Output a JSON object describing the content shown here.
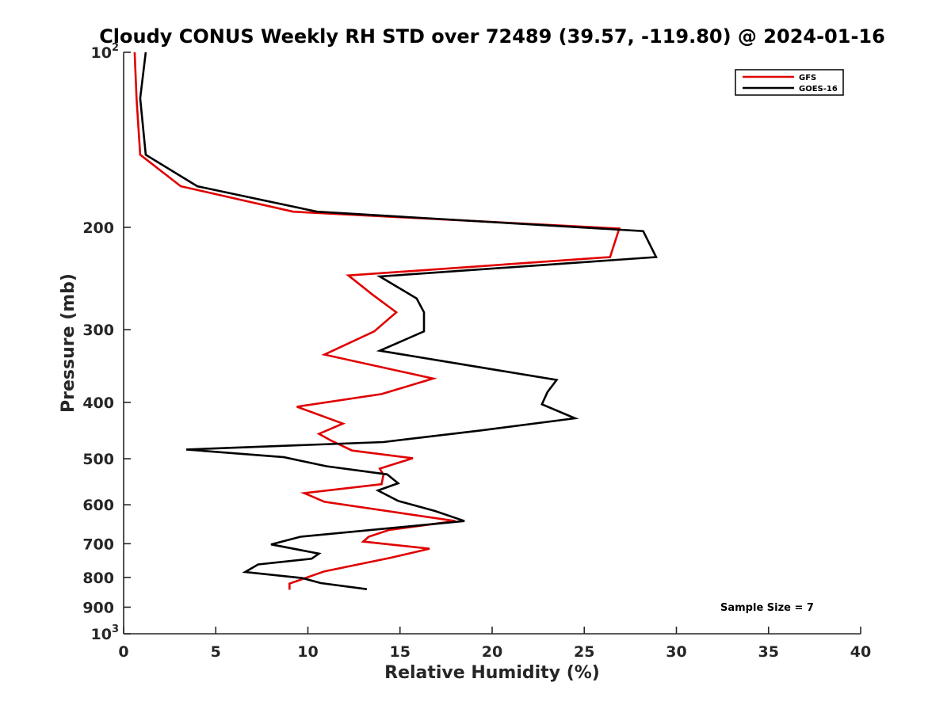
{
  "chart_data": {
    "type": "line",
    "title": "Cloudy CONUS Weekly RH STD over 72489 (39.57, -119.80) @ 2024-01-16",
    "xlabel": "Relative Humidity (%)",
    "ylabel": "Pressure (mb)",
    "xlim": [
      0,
      40
    ],
    "ylim": [
      100,
      1000
    ],
    "y_scale": "log",
    "y_reversed": true,
    "x_ticks": [
      0,
      5,
      10,
      15,
      20,
      25,
      30,
      35,
      40
    ],
    "y_ticks": [
      {
        "value": 100,
        "label": "10",
        "sup": "2"
      },
      {
        "value": 200,
        "label": "200",
        "sup": ""
      },
      {
        "value": 300,
        "label": "300",
        "sup": ""
      },
      {
        "value": 400,
        "label": "400",
        "sup": ""
      },
      {
        "value": 500,
        "label": "500",
        "sup": ""
      },
      {
        "value": 600,
        "label": "600",
        "sup": ""
      },
      {
        "value": 700,
        "label": "700",
        "sup": ""
      },
      {
        "value": 800,
        "label": "800",
        "sup": ""
      },
      {
        "value": 900,
        "label": "900",
        "sup": ""
      },
      {
        "value": 1000,
        "label": "10",
        "sup": "3"
      }
    ],
    "grid": false,
    "legend_position": "top-right",
    "series": [
      {
        "name": "GFS",
        "color": "#e00000",
        "x": [
          0.6,
          0.7,
          0.9,
          3.1,
          9.2,
          26.9,
          26.4,
          12.2,
          13.5,
          14.8,
          13.6,
          10.9,
          16.8,
          14.0,
          9.4,
          11.9,
          10.6,
          11.3,
          12.4,
          15.7,
          13.9,
          14.1,
          14.0,
          9.8,
          10.9,
          18.0,
          14.4,
          13.3,
          13.0,
          16.6,
          14.5,
          10.9,
          9.0,
          9.0
        ],
        "y": [
          100,
          120,
          150,
          170,
          188,
          201,
          225,
          242,
          261,
          280,
          302,
          331,
          364,
          387,
          407,
          435,
          453,
          466,
          484,
          499,
          520,
          533,
          553,
          573,
          593,
          640,
          663,
          681,
          694,
          714,
          740,
          781,
          820,
          840
        ]
      },
      {
        "name": "GOES-16",
        "color": "#000000",
        "x": [
          1.2,
          0.9,
          1.2,
          4.0,
          10.5,
          28.2,
          28.9,
          13.9,
          15.9,
          16.3,
          16.3,
          13.9,
          23.5,
          23.0,
          22.7,
          24.5,
          19.4,
          14.1,
          3.4,
          8.7,
          11.0,
          14.3,
          14.9,
          13.8,
          14.9,
          16.9,
          18.5,
          9.6,
          8.0,
          10.6,
          10.2,
          7.3,
          6.6,
          9.7,
          10.7,
          13.2
        ],
        "y": [
          100,
          120,
          150,
          170,
          188,
          203,
          225,
          243,
          265,
          280,
          302,
          326,
          366,
          384,
          403,
          426,
          447,
          468,
          482,
          497,
          515,
          532,
          551,
          567,
          591,
          615,
          640,
          681,
          702,
          728,
          743,
          760,
          783,
          802,
          818,
          838
        ]
      }
    ],
    "annotation": "Sample Size = 7"
  }
}
